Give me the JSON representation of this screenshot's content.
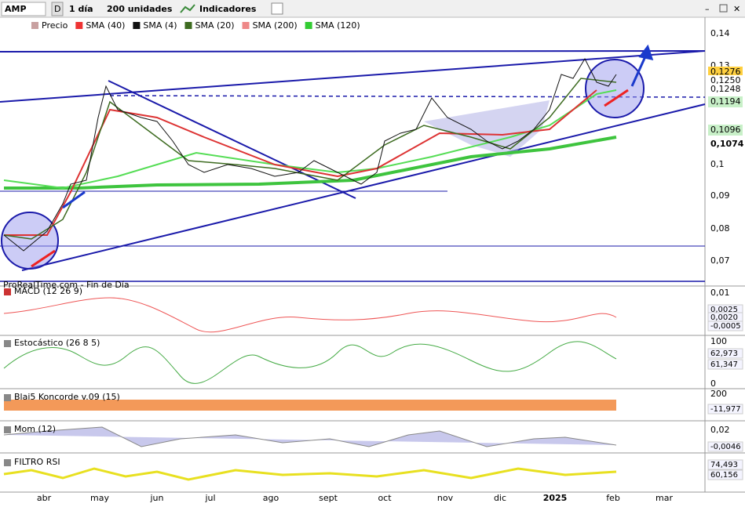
{
  "toolbar": {
    "symbol": "AMP",
    "mode": "D",
    "period": "1 día",
    "units": "200 unidades",
    "indicators": "Indicadores"
  },
  "main": {
    "legend": [
      "Precio",
      "SMA (40)",
      "SMA (4)",
      "SMA (20)",
      "SMA (200)",
      "SMA (120)"
    ],
    "axis": [
      "0,14",
      "0,13",
      "0,1",
      "0,09",
      "0,08",
      "0,07"
    ],
    "tags": [
      "0,1276",
      "0,1250",
      "0,1248",
      "0,1194",
      "0,1096",
      "0,1074"
    ],
    "source": "ProRealTime.com - Fin de Día"
  },
  "panels": [
    {
      "title": "MACD (12 26 9)",
      "axis": [
        "0,01"
      ],
      "tags": [
        "0,0025",
        "0,0020",
        "-0,0005"
      ]
    },
    {
      "title": "Estocástico (26 8 5)",
      "axis": [
        "100",
        "0"
      ],
      "tags": [
        "62,973",
        "61,347"
      ]
    },
    {
      "title": "Blai5 Koncorde v.09 (15)",
      "axis": [
        "200"
      ],
      "tags": [
        "-11,977"
      ]
    },
    {
      "title": "Mom (12)",
      "axis": [
        "0,02"
      ],
      "tags": [
        "-0,0046"
      ]
    },
    {
      "title": "FILTRO RSI",
      "axis": [],
      "tags": [
        "74,493",
        "60,156"
      ]
    }
  ],
  "months": [
    "abr",
    "may",
    "jun",
    "jul",
    "ago",
    "sept",
    "oct",
    "nov",
    "dic",
    "2025",
    "feb",
    "mar"
  ]
}
